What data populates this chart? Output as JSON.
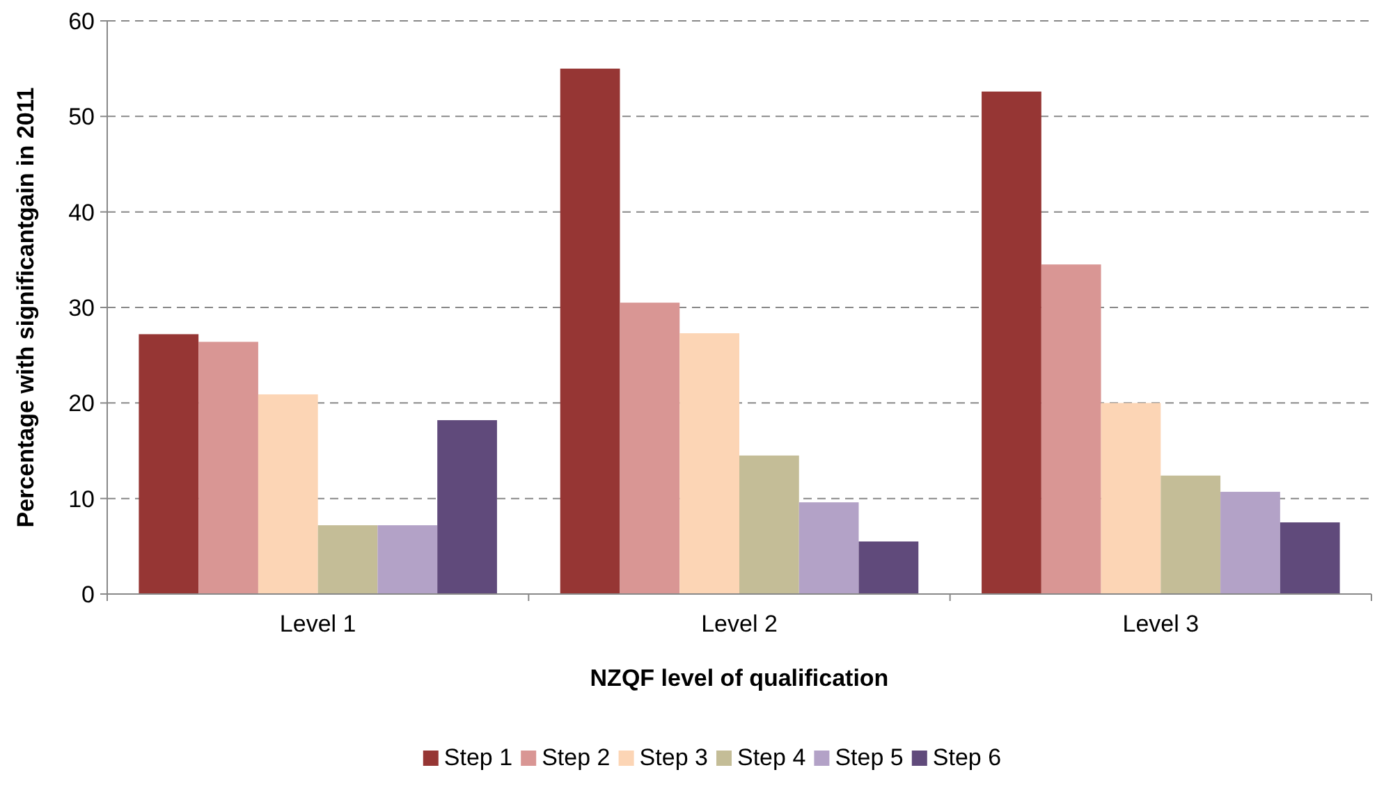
{
  "chart_data": {
    "type": "bar",
    "xlabel": "NZQF level of qualification",
    "ylabel": "Percentage with significantgain in 2011",
    "categories": [
      "Level 1",
      "Level 2",
      "Level 3"
    ],
    "series": [
      {
        "name": "Step 1",
        "color": "#963634",
        "values": [
          27.2,
          55.0,
          52.6
        ]
      },
      {
        "name": "Step 2",
        "color": "#d99694",
        "values": [
          26.4,
          30.5,
          34.5
        ]
      },
      {
        "name": "Step 3",
        "color": "#fcd5b5",
        "values": [
          20.9,
          27.3,
          20.0
        ]
      },
      {
        "name": "Step 4",
        "color": "#c4bd97",
        "values": [
          7.2,
          14.5,
          12.4
        ]
      },
      {
        "name": "Step 5",
        "color": "#b3a2c7",
        "values": [
          7.2,
          9.6,
          10.7
        ]
      },
      {
        "name": "Step 6",
        "color": "#604a7b",
        "values": [
          18.2,
          5.5,
          7.5
        ]
      }
    ],
    "ylim": [
      0,
      60
    ],
    "yticks": [
      0,
      10,
      20,
      30,
      40,
      50,
      60
    ],
    "grid": "y",
    "legend": "bottom"
  }
}
